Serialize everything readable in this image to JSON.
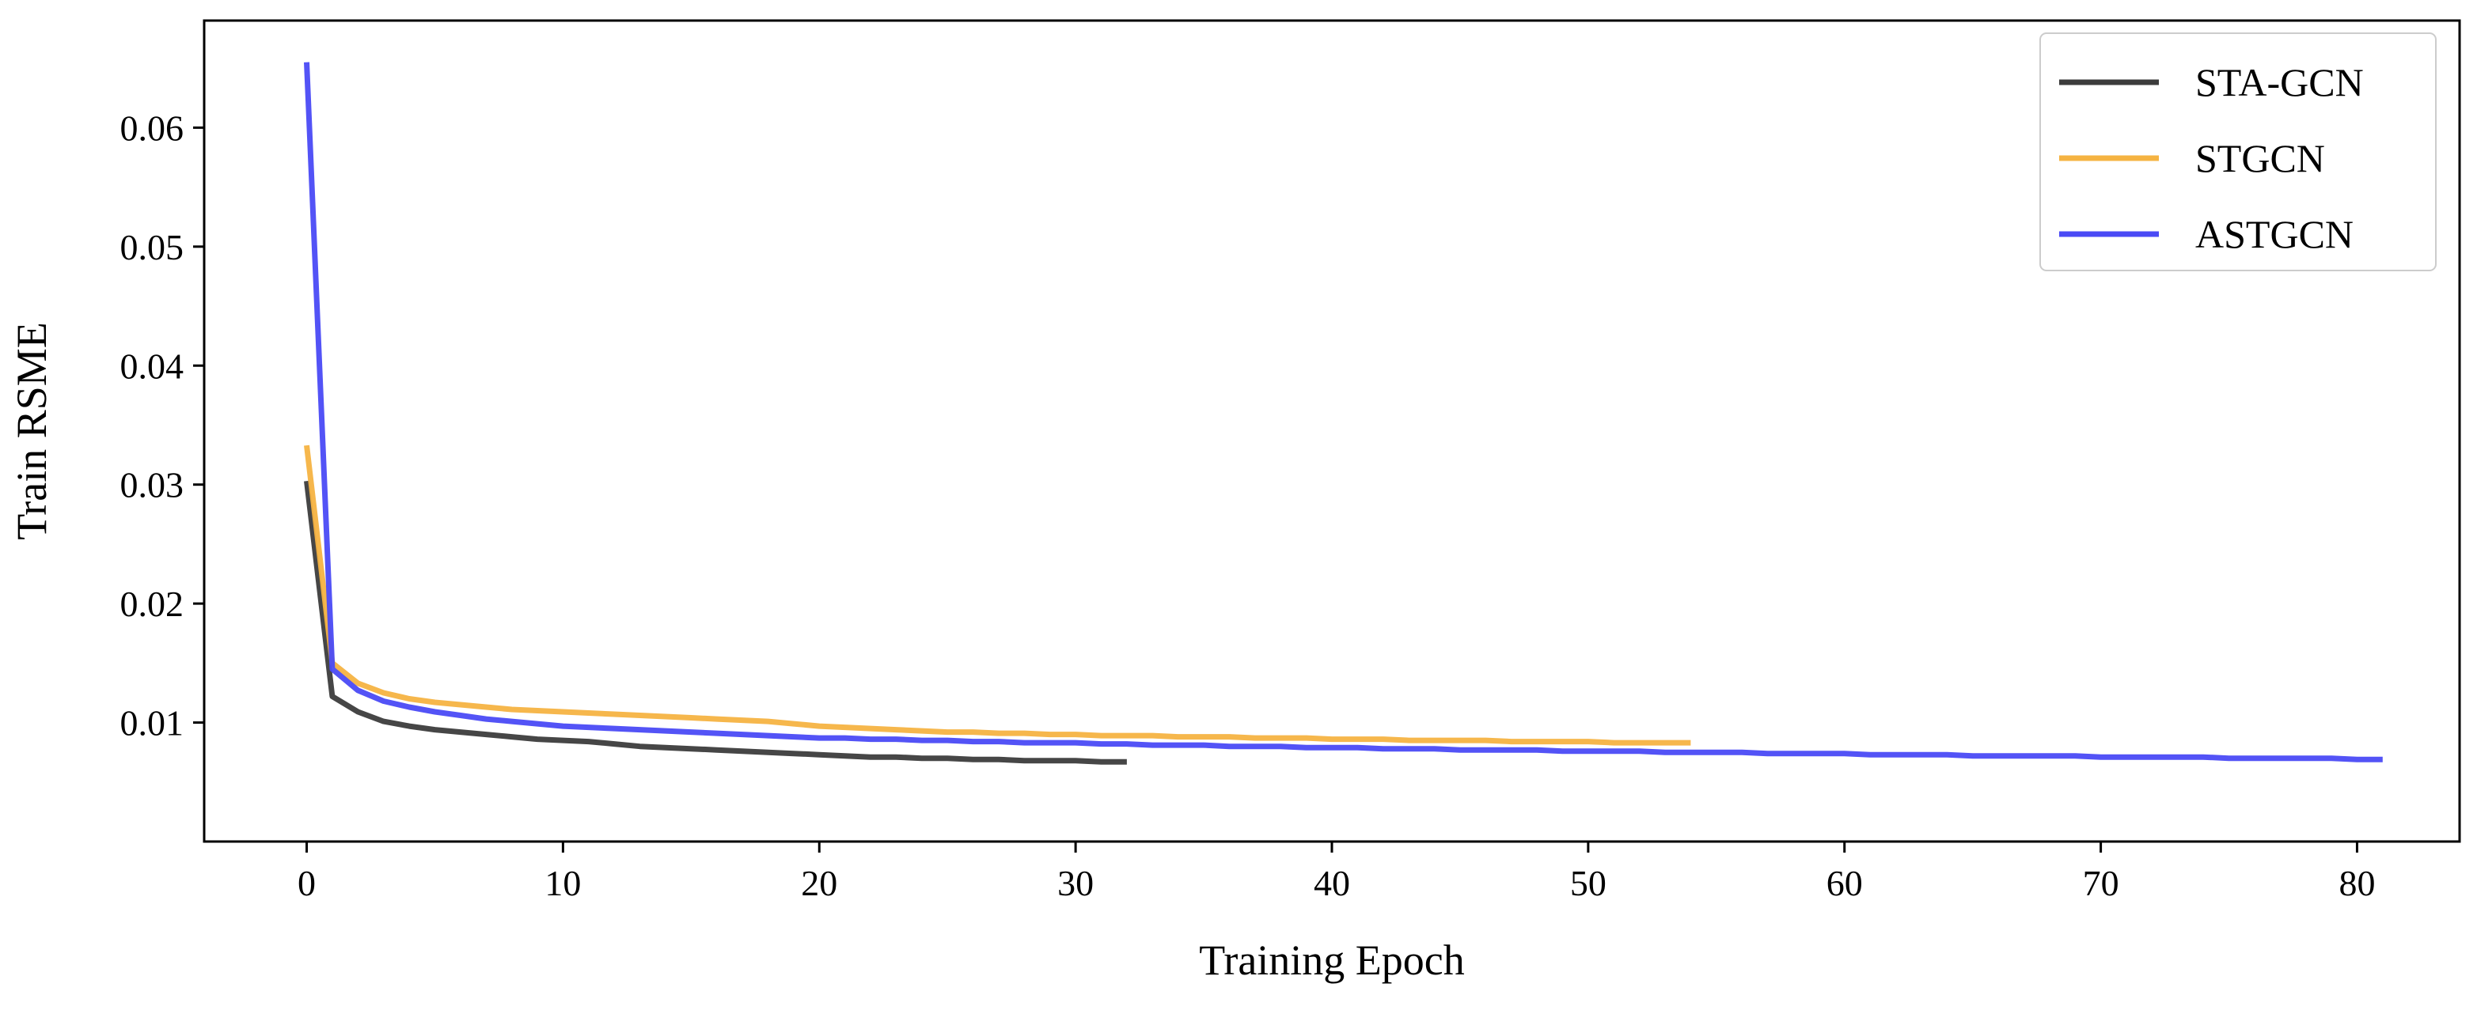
{
  "chart_data": {
    "type": "line",
    "title": "",
    "xlabel": "Training Epoch",
    "ylabel": "Train RSME",
    "xlim": [
      -4,
      84
    ],
    "ylim": [
      0,
      0.069
    ],
    "xticks": [
      0,
      10,
      20,
      30,
      40,
      50,
      60,
      70,
      80
    ],
    "yticks": [
      0.01,
      0.02,
      0.03,
      0.04,
      0.05,
      0.06
    ],
    "xtick_labels": [
      "0",
      "10",
      "20",
      "30",
      "40",
      "50",
      "60",
      "70",
      "80"
    ],
    "ytick_labels": [
      "0.01",
      "0.02",
      "0.03",
      "0.04",
      "0.05",
      "0.06"
    ],
    "grid": false,
    "legend_position": "top-right",
    "series": [
      {
        "name": "STA-GCN",
        "color": "#3c3c3c",
        "x": [
          0,
          1,
          2,
          3,
          4,
          5,
          6,
          7,
          8,
          9,
          10,
          11,
          12,
          13,
          14,
          15,
          16,
          17,
          18,
          19,
          20,
          21,
          22,
          23,
          24,
          25,
          26,
          27,
          28,
          29,
          30,
          31,
          32
        ],
        "values": [
          0.0303,
          0.0122,
          0.0109,
          0.0101,
          0.0097,
          0.0094,
          0.0092,
          0.009,
          0.0088,
          0.0086,
          0.0085,
          0.0084,
          0.0082,
          0.008,
          0.0079,
          0.0078,
          0.0077,
          0.0076,
          0.0075,
          0.0074,
          0.0073,
          0.0072,
          0.0071,
          0.0071,
          0.007,
          0.007,
          0.0069,
          0.0069,
          0.0068,
          0.0068,
          0.0068,
          0.0067,
          0.0067
        ]
      },
      {
        "name": "STGCN",
        "color": "#f5b342",
        "x": [
          0,
          1,
          2,
          3,
          4,
          5,
          6,
          7,
          8,
          9,
          10,
          11,
          12,
          13,
          14,
          15,
          16,
          17,
          18,
          19,
          20,
          21,
          22,
          23,
          24,
          25,
          26,
          27,
          28,
          29,
          30,
          31,
          32,
          33,
          34,
          35,
          36,
          37,
          38,
          39,
          40,
          41,
          42,
          43,
          44,
          45,
          46,
          47,
          48,
          49,
          50,
          51,
          52,
          53,
          54
        ],
        "values": [
          0.0333,
          0.015,
          0.0133,
          0.0125,
          0.012,
          0.0117,
          0.0115,
          0.0113,
          0.0111,
          0.011,
          0.0109,
          0.0108,
          0.0107,
          0.0106,
          0.0105,
          0.0104,
          0.0103,
          0.0102,
          0.0101,
          0.0099,
          0.0097,
          0.0096,
          0.0095,
          0.0094,
          0.0093,
          0.0092,
          0.0092,
          0.0091,
          0.0091,
          0.009,
          0.009,
          0.0089,
          0.0089,
          0.0089,
          0.0088,
          0.0088,
          0.0088,
          0.0087,
          0.0087,
          0.0087,
          0.0086,
          0.0086,
          0.0086,
          0.0085,
          0.0085,
          0.0085,
          0.0085,
          0.0084,
          0.0084,
          0.0084,
          0.0084,
          0.0083,
          0.0083,
          0.0083,
          0.0083
        ]
      },
      {
        "name": "ASTGCN",
        "color": "#4a4af5",
        "x": [
          0,
          1,
          2,
          3,
          4,
          5,
          6,
          7,
          8,
          9,
          10,
          11,
          12,
          13,
          14,
          15,
          16,
          17,
          18,
          19,
          20,
          21,
          22,
          23,
          24,
          25,
          26,
          27,
          28,
          29,
          30,
          31,
          32,
          33,
          34,
          35,
          36,
          37,
          38,
          39,
          40,
          41,
          42,
          43,
          44,
          45,
          46,
          47,
          48,
          49,
          50,
          51,
          52,
          53,
          54,
          55,
          56,
          57,
          58,
          59,
          60,
          61,
          62,
          63,
          64,
          65,
          66,
          67,
          68,
          69,
          70,
          71,
          72,
          73,
          74,
          75,
          76,
          77,
          78,
          79,
          80,
          81
        ],
        "values": [
          0.0655,
          0.0145,
          0.0127,
          0.0118,
          0.0113,
          0.0109,
          0.0106,
          0.0103,
          0.0101,
          0.0099,
          0.0097,
          0.0096,
          0.0095,
          0.0094,
          0.0093,
          0.0092,
          0.0091,
          0.009,
          0.0089,
          0.0088,
          0.0087,
          0.0087,
          0.0086,
          0.0086,
          0.0085,
          0.0085,
          0.0084,
          0.0084,
          0.0083,
          0.0083,
          0.0083,
          0.0082,
          0.0082,
          0.0081,
          0.0081,
          0.0081,
          0.008,
          0.008,
          0.008,
          0.0079,
          0.0079,
          0.0079,
          0.0078,
          0.0078,
          0.0078,
          0.0077,
          0.0077,
          0.0077,
          0.0077,
          0.0076,
          0.0076,
          0.0076,
          0.0076,
          0.0075,
          0.0075,
          0.0075,
          0.0075,
          0.0074,
          0.0074,
          0.0074,
          0.0074,
          0.0073,
          0.0073,
          0.0073,
          0.0073,
          0.0072,
          0.0072,
          0.0072,
          0.0072,
          0.0072,
          0.0071,
          0.0071,
          0.0071,
          0.0071,
          0.0071,
          0.007,
          0.007,
          0.007,
          0.007,
          0.007,
          0.0069,
          0.0069
        ]
      }
    ]
  }
}
